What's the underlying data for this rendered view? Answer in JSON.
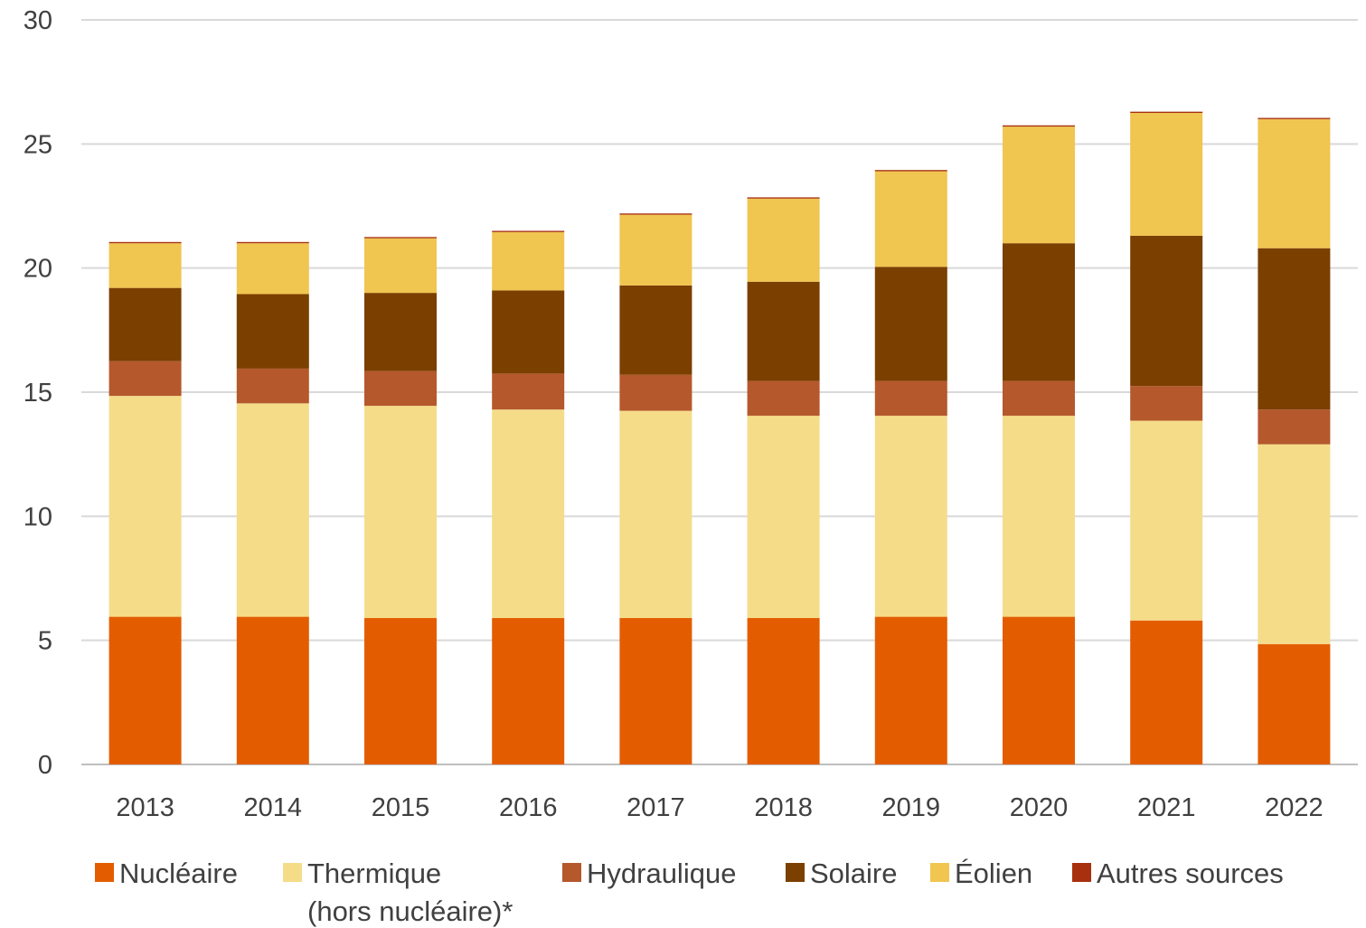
{
  "chart_data": {
    "type": "bar",
    "stacked": true,
    "title": "",
    "xlabel": "",
    "ylabel": "",
    "categories": [
      "2013",
      "2014",
      "2015",
      "2016",
      "2017",
      "2018",
      "2019",
      "2020",
      "2021",
      "2022"
    ],
    "ylim": [
      0,
      30
    ],
    "yticks": [
      0,
      5,
      10,
      15,
      20,
      25,
      30
    ],
    "grid": true,
    "legend": "bottom",
    "series": [
      {
        "name": "Nucléaire",
        "color": "#E35D00",
        "values": [
          5.95,
          5.95,
          5.9,
          5.9,
          5.9,
          5.9,
          5.95,
          5.95,
          5.8,
          4.85
        ]
      },
      {
        "name": "Thermique",
        "name_line2": "(hors nucléaire)*",
        "color": "#F5DC89",
        "values": [
          8.9,
          8.6,
          8.55,
          8.4,
          8.35,
          8.15,
          8.1,
          8.1,
          8.05,
          8.05
        ]
      },
      {
        "name": "Hydraulique",
        "color": "#B5582C",
        "values": [
          1.4,
          1.4,
          1.4,
          1.45,
          1.45,
          1.4,
          1.4,
          1.4,
          1.4,
          1.4
        ]
      },
      {
        "name": "Solaire",
        "color": "#7B3F00",
        "values": [
          2.95,
          3.0,
          3.15,
          3.35,
          3.6,
          4.0,
          4.6,
          5.55,
          6.05,
          6.5
        ]
      },
      {
        "name": "Éolien",
        "color": "#F0C550",
        "values": [
          1.8,
          2.05,
          2.2,
          2.35,
          2.85,
          3.35,
          3.85,
          4.7,
          4.95,
          5.2
        ]
      },
      {
        "name": "Autres sources",
        "color": "#A8300F",
        "values": [
          0.05,
          0.05,
          0.05,
          0.05,
          0.05,
          0.05,
          0.05,
          0.05,
          0.05,
          0.05
        ]
      }
    ]
  }
}
